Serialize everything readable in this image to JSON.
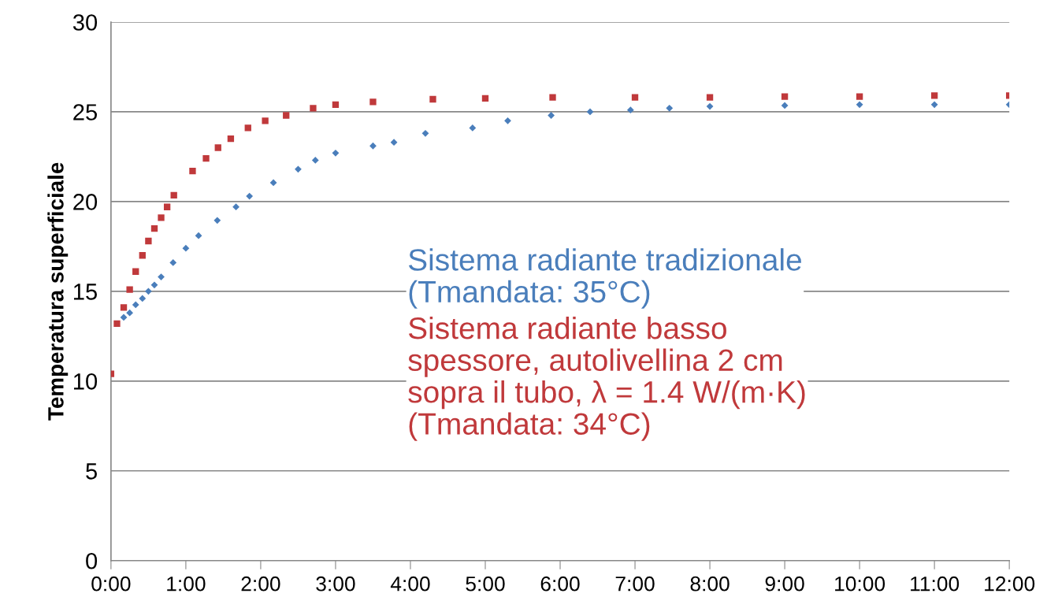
{
  "chart_data": {
    "type": "scatter",
    "ylabel": "Temperatura superficiale",
    "xlim": [
      0,
      12
    ],
    "ylim": [
      0,
      30
    ],
    "xticks": [
      {
        "value": 0,
        "label": "0:00"
      },
      {
        "value": 1,
        "label": "1:00"
      },
      {
        "value": 2,
        "label": "2:00"
      },
      {
        "value": 3,
        "label": "3:00"
      },
      {
        "value": 4,
        "label": "4:00"
      },
      {
        "value": 5,
        "label": "5:00"
      },
      {
        "value": 6,
        "label": "6:00"
      },
      {
        "value": 7,
        "label": "7:00"
      },
      {
        "value": 8,
        "label": "8:00"
      },
      {
        "value": 9,
        "label": "9:00"
      },
      {
        "value": 10,
        "label": "10:00"
      },
      {
        "value": 11,
        "label": "11:00"
      },
      {
        "value": 12,
        "label": "12:00"
      }
    ],
    "yticks": [
      0,
      5,
      10,
      15,
      20,
      25,
      30
    ],
    "grid": "y",
    "series": [
      {
        "name": "Sistema radiante tradizionale\n(Tmandata: 35°C)",
        "color": "#4a7ebb",
        "marker": "diamond",
        "x": [
          0.17,
          0.25,
          0.33,
          0.42,
          0.5,
          0.58,
          0.67,
          0.83,
          1.0,
          1.17,
          1.42,
          1.67,
          1.85,
          2.17,
          2.5,
          2.73,
          3.0,
          3.5,
          3.78,
          4.2,
          4.83,
          5.3,
          5.88,
          6.4,
          6.94,
          7.46,
          8.0,
          9.0,
          10.0,
          11.0,
          12.0
        ],
        "values": [
          13.55,
          13.8,
          14.25,
          14.6,
          15.0,
          15.35,
          15.8,
          16.6,
          17.4,
          18.1,
          18.95,
          19.7,
          20.3,
          21.05,
          21.8,
          22.3,
          22.7,
          23.1,
          23.3,
          23.8,
          24.1,
          24.5,
          24.8,
          25.0,
          25.1,
          25.2,
          25.3,
          25.35,
          25.4,
          25.4,
          25.4
        ]
      },
      {
        "name": "Sistema radiante basso\nspessore, autolivellina 2 cm\nsopra il tubo, λ = 1.4 W/(m·K)\n(Tmandata: 34°C)",
        "color": "#c0393b",
        "marker": "square",
        "x": [
          0,
          0.08,
          0.17,
          0.25,
          0.33,
          0.42,
          0.5,
          0.58,
          0.67,
          0.75,
          0.84,
          1.09,
          1.27,
          1.43,
          1.6,
          1.83,
          2.06,
          2.34,
          2.7,
          3.0,
          3.5,
          4.3,
          5.0,
          5.9,
          7.0,
          8.0,
          9.0,
          10.0,
          11.0,
          12.0
        ],
        "values": [
          10.4,
          13.2,
          14.1,
          15.1,
          16.1,
          17.0,
          17.8,
          18.5,
          19.1,
          19.7,
          20.35,
          21.7,
          22.4,
          23.0,
          23.5,
          24.1,
          24.5,
          24.8,
          25.2,
          25.4,
          25.55,
          25.7,
          25.75,
          25.8,
          25.8,
          25.8,
          25.85,
          25.85,
          25.9,
          25.9
        ]
      }
    ]
  }
}
